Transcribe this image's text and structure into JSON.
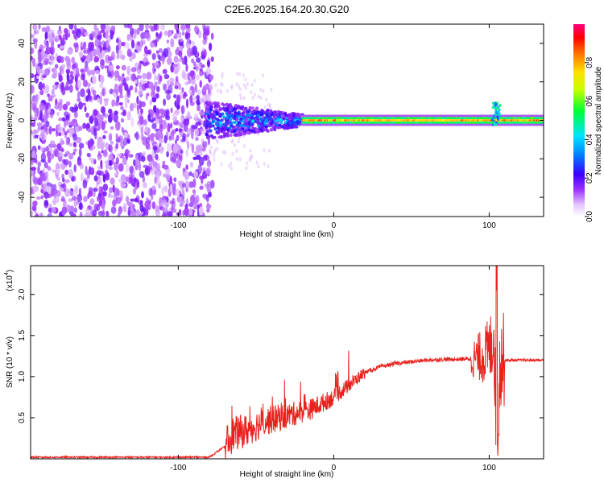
{
  "figure_title": "C2E6.2025.164.20.30.G20",
  "chart_data": [
    {
      "type": "heatmap",
      "title": "",
      "xlabel": "Height of straight line (km)",
      "ylabel": "Frequency (Hz)",
      "xlim": [
        -195,
        135
      ],
      "ylim": [
        -50,
        50
      ],
      "xticks": [
        -100,
        0,
        100
      ],
      "yticks": [
        -40,
        -20,
        0,
        20,
        40
      ],
      "grid": false,
      "colorbar": {
        "label": "Normalized spectral amplitude",
        "range": [
          0,
          1
        ],
        "ticks": [
          "0.0",
          "0.2",
          "0.4",
          "0.6",
          "0.8"
        ],
        "colormap": "rainbow"
      },
      "regions": [
        {
          "x": [
            -195,
            -80
          ],
          "description_hz_spread": [
            -50,
            50
          ],
          "amplitude": [
            0.05,
            0.25
          ]
        },
        {
          "x": [
            -80,
            -20
          ],
          "description_hz_spread": [
            -12,
            10
          ],
          "amplitude": [
            0.1,
            0.5
          ]
        },
        {
          "x": [
            -20,
            135
          ],
          "description_hz_spread": [
            -2,
            2
          ],
          "amplitude": [
            0.4,
            1.0
          ]
        }
      ]
    },
    {
      "type": "line",
      "title": "",
      "xlabel": "Height of straight line (km)",
      "ylabel": "SNR (10 * v/v)",
      "yscale_note": "(x10",
      "yscale_exp": "4",
      "xlim": [
        -195,
        135
      ],
      "ylim": [
        0,
        2.35
      ],
      "xticks": [
        -100,
        0,
        100
      ],
      "yticks": [
        "0.5",
        "1.0",
        "1.5",
        "2.0"
      ],
      "color": "#e8231e",
      "series": [
        {
          "x": [
            -195,
            -160,
            -120,
            -80,
            -70,
            -65,
            -55,
            -45,
            -35,
            -25,
            -15,
            -5,
            0,
            10,
            20,
            30,
            40,
            50,
            60,
            70,
            80,
            90,
            95,
            100,
            103,
            105,
            107,
            110,
            120,
            135
          ],
          "values": [
            0.02,
            0.02,
            0.02,
            0.02,
            0.15,
            0.3,
            0.35,
            0.45,
            0.5,
            0.55,
            0.6,
            0.7,
            0.75,
            0.9,
            1.05,
            1.12,
            1.16,
            1.18,
            1.2,
            1.21,
            1.21,
            1.22,
            1.25,
            1.3,
            1.5,
            0.1,
            1.2,
            1.2,
            1.2,
            1.2
          ]
        }
      ]
    }
  ]
}
